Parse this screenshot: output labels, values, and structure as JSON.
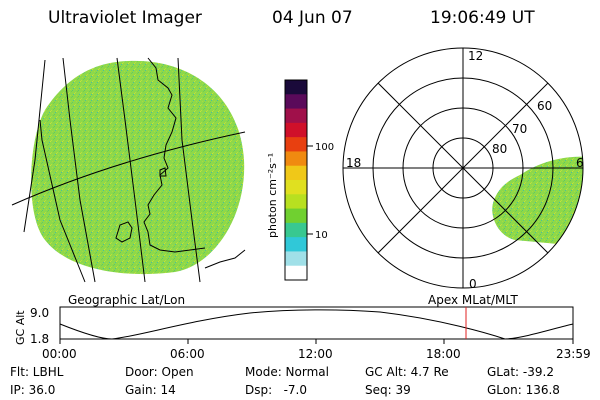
{
  "header": {
    "title": "Ultraviolet Imager",
    "date": "04 Jun 07",
    "time": "19:06:49 UT"
  },
  "panels": {
    "left_label": "Geographic Lat/Lon",
    "right_label": "Apex MLat/MLT"
  },
  "colorbar": {
    "unit_label": "photon cm⁻²s⁻¹",
    "ticks": [
      "100",
      "10"
    ],
    "scale": "log",
    "colors_top_to_bottom": [
      "#1a0a3a",
      "#5a0a5a",
      "#a0104a",
      "#d0102a",
      "#e84010",
      "#f08a10",
      "#f0c818",
      "#e0e020",
      "#b8e020",
      "#70d030",
      "#38c890",
      "#30c8d8",
      "#a0e0e8",
      "#ffffff"
    ]
  },
  "polar": {
    "mlt_labels": [
      "12",
      "18",
      "6",
      "0"
    ],
    "lat_labels": [
      "60",
      "70",
      "80"
    ]
  },
  "altitude_plot": {
    "ylabel": "GC Alt",
    "yticks": [
      "9.0",
      "1.8"
    ],
    "xticks": [
      "00:00",
      "06:00",
      "12:00",
      "18:00",
      "23:59"
    ],
    "current_time_marker": "19:06",
    "marker_color": "#e02020"
  },
  "status": {
    "flt": "Flt: LBHL",
    "ip": "IP: 36.0",
    "door": "Door: Open",
    "gain": "Gain: 14",
    "mode": "Mode: Normal",
    "dsp": "Dsp:   -7.0",
    "gc_alt": "GC Alt: 4.7 Re",
    "seq": "Seq: 39",
    "glat": "GLat: -39.2",
    "glon": "GLon: 136.8"
  },
  "colors": {
    "emission_green": "#8ed84a",
    "foreground": "#000000",
    "background": "#ffffff"
  }
}
